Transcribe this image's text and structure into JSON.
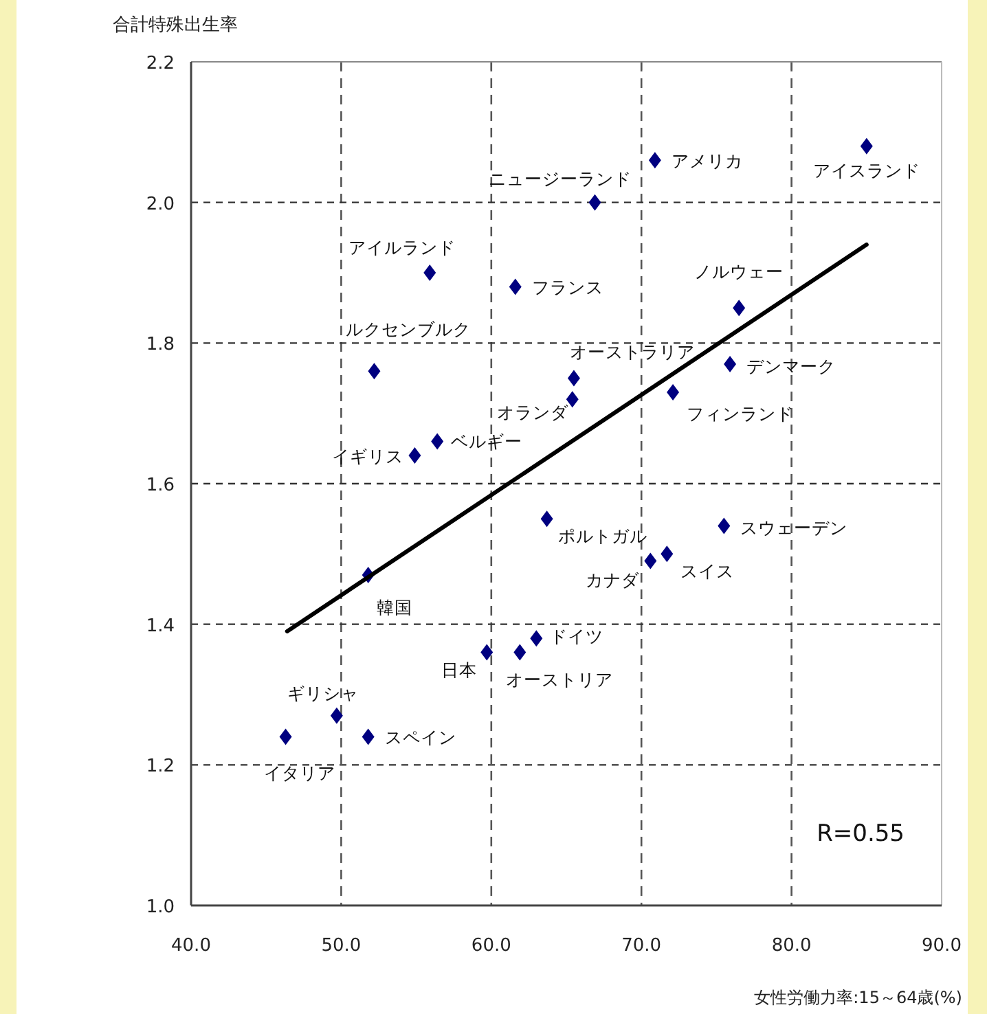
{
  "chart_data": {
    "type": "scatter",
    "xlabel": "女性労働力率:15～64歳(%)",
    "ylabel": "合計特殊出生率",
    "xlim": [
      40,
      90
    ],
    "ylim": [
      1.0,
      2.2
    ],
    "xticks": [
      {
        "value": 40,
        "label": "40.0"
      },
      {
        "value": 50,
        "label": "50.0"
      },
      {
        "value": 60,
        "label": "60.0"
      },
      {
        "value": 70,
        "label": "70.0"
      },
      {
        "value": 80,
        "label": "80.0"
      },
      {
        "value": 90,
        "label": "90.0"
      }
    ],
    "yticks": [
      {
        "value": 1.0,
        "label": "1.0"
      },
      {
        "value": 1.2,
        "label": "1.2"
      },
      {
        "value": 1.4,
        "label": "1.4"
      },
      {
        "value": 1.6,
        "label": "1.6"
      },
      {
        "value": 1.8,
        "label": "1.8"
      },
      {
        "value": 2.0,
        "label": "2.0"
      },
      {
        "value": 2.2,
        "label": "2.2"
      }
    ],
    "grid": true,
    "series": [
      {
        "marker": "diamond",
        "color": "#000080",
        "x": [
          70.9,
          85.0,
          66.9,
          55.9,
          61.6,
          52.2,
          65.5,
          65.4,
          56.4,
          54.9,
          76.5,
          75.9,
          72.1,
          63.7,
          75.5,
          70.6,
          71.7,
          51.8,
          59.7,
          61.9,
          63.0,
          49.7,
          46.3,
          51.8
        ],
        "values": [
          2.06,
          2.08,
          2.0,
          1.9,
          1.88,
          1.76,
          1.75,
          1.72,
          1.66,
          1.64,
          1.85,
          1.77,
          1.73,
          1.55,
          1.54,
          1.49,
          1.5,
          1.47,
          1.36,
          1.36,
          1.38,
          1.27,
          1.24,
          1.24
        ]
      },
      {
        "type": "line",
        "marker": "none",
        "line_style": "solid",
        "color": "#000000",
        "x": [
          46.4,
          85.0
        ],
        "values": [
          1.39,
          1.94
        ]
      }
    ],
    "annotations": [
      {
        "text": "アメリカ",
        "x": 70.9,
        "y": 2.06
      },
      {
        "text": "アイスランド",
        "x": 85.0,
        "y": 2.08
      },
      {
        "text": "ニュージーランド",
        "x": 66.9,
        "y": 2.0
      },
      {
        "text": "アイルランド",
        "x": 55.9,
        "y": 1.9
      },
      {
        "text": "フランス",
        "x": 61.6,
        "y": 1.88
      },
      {
        "text": "ルクセンブルク",
        "x": 52.2,
        "y": 1.76
      },
      {
        "text": "オーストラリア",
        "x": 65.5,
        "y": 1.75
      },
      {
        "text": "オランダ",
        "x": 65.4,
        "y": 1.72
      },
      {
        "text": "ベルギー",
        "x": 56.4,
        "y": 1.66
      },
      {
        "text": "イギリス",
        "x": 54.9,
        "y": 1.64
      },
      {
        "text": "ノルウェー",
        "x": 76.5,
        "y": 1.85
      },
      {
        "text": "デンマーク",
        "x": 75.9,
        "y": 1.77
      },
      {
        "text": "フィンランド",
        "x": 72.1,
        "y": 1.73
      },
      {
        "text": "ポルトガル",
        "x": 63.7,
        "y": 1.55
      },
      {
        "text": "スウェーデン",
        "x": 75.5,
        "y": 1.54
      },
      {
        "text": "カナダ",
        "x": 70.6,
        "y": 1.49
      },
      {
        "text": "スイス",
        "x": 71.7,
        "y": 1.5
      },
      {
        "text": "韓国",
        "x": 51.8,
        "y": 1.47
      },
      {
        "text": "日本",
        "x": 59.7,
        "y": 1.36
      },
      {
        "text": "オーストリア",
        "x": 61.9,
        "y": 1.36
      },
      {
        "text": "ドイツ",
        "x": 63.0,
        "y": 1.38
      },
      {
        "text": "ギリシャ",
        "x": 49.7,
        "y": 1.27
      },
      {
        "text": "イタリア",
        "x": 46.3,
        "y": 1.24
      },
      {
        "text": "スペイン",
        "x": 51.8,
        "y": 1.24
      },
      "R=0.55"
    ]
  }
}
